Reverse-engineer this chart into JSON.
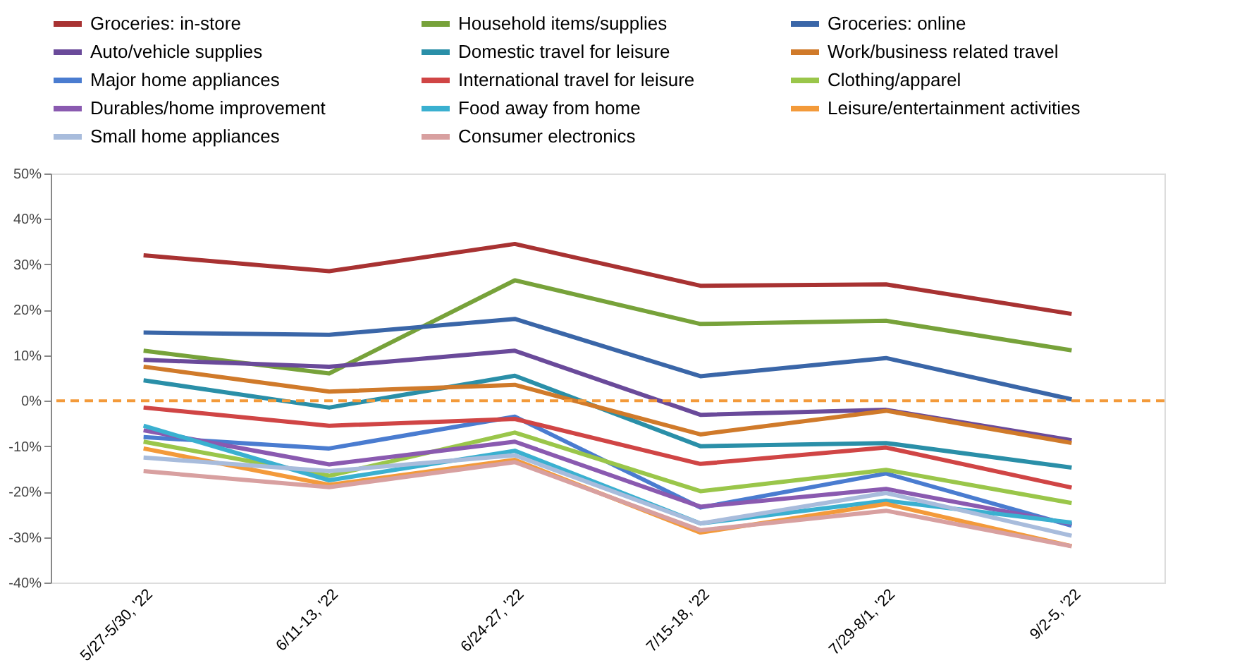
{
  "chart_data": {
    "type": "line",
    "categories": [
      "5/27-5/30, '22",
      "6/11-13, '22",
      "6/24-27, '22",
      "7/15-18, '22",
      "7/29-8/1, '22",
      "9/2-5, '22"
    ],
    "series": [
      {
        "name": "Groceries: in-store",
        "color": "#a83232",
        "values": [
          32,
          28.5,
          34.5,
          25.3,
          25.6,
          19.1
        ]
      },
      {
        "name": "Household items/supplies",
        "color": "#77a23a",
        "values": [
          11,
          6,
          26.5,
          16.9,
          17.6,
          11.1
        ]
      },
      {
        "name": "Groceries: online",
        "color": "#3a66a8",
        "values": [
          15,
          14.5,
          18,
          5.4,
          9.4,
          0.3
        ]
      },
      {
        "name": "Auto/vehicle supplies",
        "color": "#6a4a9a",
        "values": [
          9,
          7.5,
          11,
          -3.1,
          -2,
          -8.7
        ]
      },
      {
        "name": "Domestic travel for leisure",
        "color": "#2a8fa8",
        "values": [
          4.5,
          -1.5,
          5.5,
          -10,
          -9.3,
          -14.7
        ]
      },
      {
        "name": "Work/business related travel",
        "color": "#d07a2a",
        "values": [
          7.5,
          2,
          3.5,
          -7.4,
          -2.2,
          -9.3
        ]
      },
      {
        "name": "Major home appliances",
        "color": "#4a7cd0",
        "values": [
          -8,
          -10.5,
          -3.5,
          -23.5,
          -16,
          -27.5
        ]
      },
      {
        "name": "International travel for leisure",
        "color": "#d04545",
        "values": [
          -1.5,
          -5.5,
          -4,
          -13.9,
          -10.3,
          -19.1
        ]
      },
      {
        "name": "Clothing/apparel",
        "color": "#9ac64a",
        "values": [
          -9,
          -16.5,
          -7,
          -19.9,
          -15.2,
          -22.5
        ]
      },
      {
        "name": "Durables/home improvement",
        "color": "#8a5ab0",
        "values": [
          -6.5,
          -14,
          -9,
          -23.3,
          -19.4,
          -27.1
        ]
      },
      {
        "name": "Food away from home",
        "color": "#3ab0d0",
        "values": [
          -5.5,
          -17.5,
          -11,
          -27,
          -22,
          -26.8
        ]
      },
      {
        "name": "Leisure/entertainment activities",
        "color": "#f39a3a",
        "values": [
          -10.5,
          -18.5,
          -13,
          -29,
          -22.7,
          -32
        ]
      },
      {
        "name": "Small home appliances",
        "color": "#a8bcdc",
        "values": [
          -12.5,
          -15.5,
          -12,
          -27,
          -20.3,
          -29.7
        ]
      },
      {
        "name": "Consumer electronics",
        "color": "#d8a0a0",
        "values": [
          -15.5,
          -19,
          -13.5,
          -28.5,
          -24.2,
          -32
        ]
      }
    ],
    "ylim": [
      -40,
      50
    ],
    "yticks": [
      {
        "value": -40,
        "label": "-40%"
      },
      {
        "value": -30,
        "label": "-30%"
      },
      {
        "value": -20,
        "label": "-20%"
      },
      {
        "value": -10,
        "label": "-10%"
      },
      {
        "value": 0,
        "label": "0%"
      },
      {
        "value": 10,
        "label": "10%"
      },
      {
        "value": 20,
        "label": "20%"
      },
      {
        "value": 30,
        "label": "30%"
      },
      {
        "value": 40,
        "label": "40%"
      },
      {
        "value": 50,
        "label": "50%"
      }
    ],
    "ref_lines": [
      {
        "axis": "y",
        "value": 0,
        "color": "#f39a3a",
        "line_style": "dashed"
      }
    ],
    "grid": false,
    "legend": "top"
  }
}
